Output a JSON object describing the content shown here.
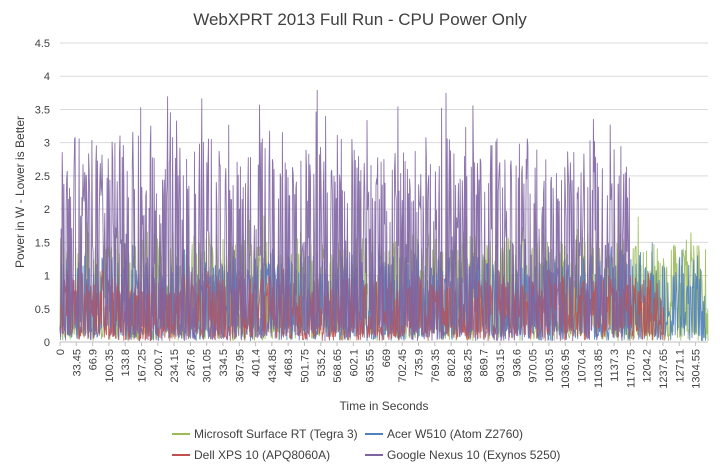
{
  "chart_data": {
    "type": "line",
    "title": "WebXPRT 2013 Full Run - CPU Power Only",
    "xlabel": "Time in Seconds",
    "ylabel": "Power in W - Lower is Better",
    "ylim": [
      0,
      4.5
    ],
    "xlim": [
      0,
      1330
    ],
    "yticks": [
      "0",
      "0.5",
      "1",
      "1.5",
      "2",
      "2.5",
      "3",
      "3.5",
      "4",
      "4.5"
    ],
    "xticks": [
      "0",
      "33.45",
      "66.9",
      "100.35",
      "133.8",
      "167.25",
      "200.7",
      "234.15",
      "267.6",
      "301.05",
      "334.5",
      "367.95",
      "401.4",
      "434.85",
      "468.3",
      "501.75",
      "535.2",
      "568.65",
      "602.1",
      "635.55",
      "669",
      "702.45",
      "735.9",
      "769.35",
      "802.8",
      "836.25",
      "869.7",
      "903.15",
      "936.6",
      "970.05",
      "1003.5",
      "1036.95",
      "1070.4",
      "1103.85",
      "1137.3",
      "1170.75",
      "1204.2",
      "1237.65",
      "1271.1",
      "1304.55"
    ],
    "grid": true,
    "legend_position": "bottom",
    "series": [
      {
        "name": "Microsoft Surface RT (Tegra 3)",
        "color": "#9bbb59",
        "x_end": 1330,
        "typical_high": 1.5,
        "max": 1.9
      },
      {
        "name": "Acer W510 (Atom Z2760)",
        "color": "#4f81bd",
        "x_end": 1325,
        "typical_high": 1.2,
        "max": 1.5
      },
      {
        "name": "Dell XPS 10 (APQ8060A)",
        "color": "#c0504d",
        "x_end": 1240,
        "typical_high": 0.9,
        "max": 1.1
      },
      {
        "name": "Google Nexus 10 (Exynos 5250)",
        "color": "#8064a2",
        "x_end": 1170,
        "typical_high": 2.8,
        "max": 3.9
      }
    ]
  }
}
